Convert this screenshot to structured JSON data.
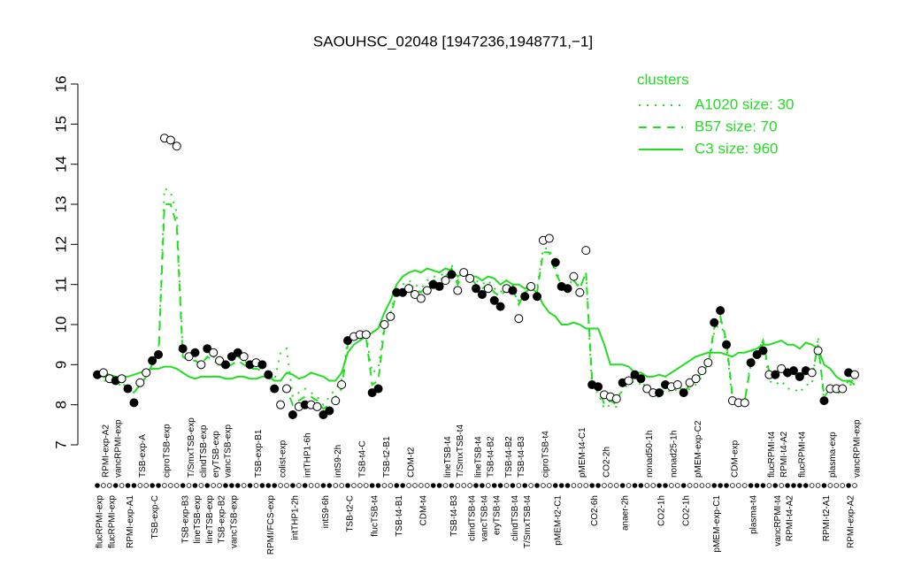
{
  "chart_data": {
    "type": "scatter",
    "title": "SAOUHSC_02048 [1947236,1948771,−1]",
    "categories": [
      "flucRPMI-exp",
      "RPMI-exp-A2",
      "flucRPMI-exp",
      "vancRPMI-exp",
      null,
      "RPMI-exp-A1",
      null,
      "TSB-exp-A",
      null,
      "TSB-exp-C",
      null,
      "ciproTSB-exp",
      null,
      null,
      "TSB-exp-B3",
      "T/SmxTSB-exp",
      "lineTSB-exp",
      "clindTSB-exp",
      "lineTSB-exp",
      "eryTSB-exp",
      "TSB-exp-B2",
      "vancTSB-exp",
      "vancTSB-exp",
      null,
      null,
      null,
      "TSB-exp-B1",
      null,
      "RPMI/FCS-exp",
      null,
      "colist-exp",
      null,
      "intTHP1-2h",
      null,
      "intTHP1-6h",
      null,
      null,
      "intS9-6h",
      null,
      "intS9-2h",
      null,
      "TSB-t2-C",
      null,
      "TSB-t4-C",
      null,
      "flucTSB-t4",
      null,
      "TSB-t2-B1",
      null,
      "TSB-t4-B1",
      null,
      "CDM-t2",
      null,
      "CDM-t4",
      null,
      null,
      null,
      "lineTSB-t4",
      "TSB-t4-B3",
      "T/SmxTSB-t4",
      null,
      "clindTSB-t4",
      "lineTSB-t4",
      "vancTSB-t4",
      "TSB-t4-B2",
      "eryTSB-t4",
      null,
      "TSB-t4-B2",
      "clindTSB-t4",
      "TSB-t4-B3",
      "T/SmxTSB-t4",
      null,
      null,
      "ciproTSB-t4",
      null,
      "pMEM-t2-C1",
      null,
      null,
      null,
      "pMEM-t4-C1",
      null,
      "CO2-6h",
      null,
      "CO2-2h",
      null,
      null,
      "anaer-2h",
      null,
      null,
      null,
      "nonad50-1h",
      null,
      "CO2-1h",
      null,
      "nonad25-1h",
      null,
      "CO2-1h",
      null,
      "pMEM-exp-C2",
      null,
      null,
      "pMEM-exp-C1",
      null,
      null,
      "CDM-exp",
      null,
      null,
      "plasma-t4",
      null,
      null,
      "flucRPMI-t4",
      "vancRPMI-t4",
      "RPMI-t4-A2",
      "RPMI-t4-A2",
      null,
      "flucRPMI-t4",
      null,
      null,
      null,
      "RPMI-t2-A1",
      "plasma-exp",
      null,
      null,
      "RPMI-exp-A2",
      "vancRPMI-exp"
    ],
    "points": {
      "values": [
        8.75,
        8.8,
        8.65,
        8.6,
        8.65,
        8.4,
        8.05,
        8.55,
        8.8,
        9.1,
        9.25,
        14.65,
        14.6,
        14.45,
        9.4,
        9.2,
        9.3,
        9.0,
        9.4,
        9.3,
        9.1,
        9.0,
        9.2,
        9.3,
        9.2,
        9.0,
        9.05,
        9.0,
        8.75,
        8.4,
        8.0,
        8.4,
        7.75,
        7.95,
        8.0,
        8.0,
        7.95,
        7.75,
        7.85,
        8.1,
        8.5,
        9.6,
        9.7,
        9.75,
        9.75,
        8.3,
        8.4,
        10.0,
        10.2,
        10.8,
        10.8,
        10.9,
        10.75,
        10.65,
        10.85,
        11.0,
        10.95,
        11.1,
        11.25,
        10.85,
        11.3,
        11.15,
        10.9,
        10.75,
        10.9,
        10.6,
        10.45,
        10.9,
        10.85,
        10.15,
        10.7,
        10.95,
        10.7,
        12.1,
        12.15,
        11.55,
        10.95,
        10.9,
        11.2,
        10.8,
        11.85,
        8.5,
        8.45,
        8.25,
        8.2,
        8.15,
        8.55,
        8.6,
        8.75,
        8.65,
        8.4,
        8.3,
        8.3,
        8.5,
        8.45,
        8.5,
        8.3,
        8.55,
        8.65,
        8.85,
        9.05,
        10.05,
        10.35,
        9.5,
        8.1,
        8.05,
        8.05,
        9.05,
        9.25,
        9.35,
        8.75,
        8.75,
        8.9,
        8.8,
        8.85,
        8.7,
        8.85,
        8.8,
        9.35,
        8.1,
        8.4,
        8.4,
        8.4,
        8.8,
        8.75
      ],
      "fills": [
        "#000000",
        "#ffffff",
        "#ffffff",
        "#000000",
        "#ffffff",
        "#000000",
        "#000000",
        "#ffffff",
        "#ffffff",
        "#000000",
        "#000000",
        "#ffffff",
        "#ffffff",
        "#ffffff",
        "#000000",
        "#ffffff",
        "#000000",
        "#ffffff",
        "#000000",
        "#ffffff",
        "#ffffff",
        "#000000",
        "#000000",
        "#000000",
        "#ffffff",
        "#000000",
        "#ffffff",
        "#000000",
        "#000000",
        "#000000",
        "#ffffff",
        "#ffffff",
        "#000000",
        "#ffffff",
        "#000000",
        "#ffffff",
        "#ffffff",
        "#000000",
        "#000000",
        "#ffffff",
        "#ffffff",
        "#000000",
        "#ffffff",
        "#ffffff",
        "#ffffff",
        "#000000",
        "#000000",
        "#ffffff",
        "#ffffff",
        "#000000",
        "#000000",
        "#ffffff",
        "#ffffff",
        "#ffffff",
        "#ffffff",
        "#000000",
        "#000000",
        "#ffffff",
        "#000000",
        "#ffffff",
        "#ffffff",
        "#ffffff",
        "#000000",
        "#000000",
        "#ffffff",
        "#000000",
        "#000000",
        "#ffffff",
        "#000000",
        "#ffffff",
        "#000000",
        "#ffffff",
        "#000000",
        "#ffffff",
        "#ffffff",
        "#000000",
        "#000000",
        "#000000",
        "#ffffff",
        "#ffffff",
        "#ffffff",
        "#000000",
        "#000000",
        "#ffffff",
        "#ffffff",
        "#ffffff",
        "#000000",
        "#ffffff",
        "#000000",
        "#000000",
        "#ffffff",
        "#ffffff",
        "#000000",
        "#000000",
        "#ffffff",
        "#ffffff",
        "#000000",
        "#ffffff",
        "#ffffff",
        "#ffffff",
        "#ffffff",
        "#000000",
        "#000000",
        "#000000",
        "#ffffff",
        "#ffffff",
        "#ffffff",
        "#000000",
        "#000000",
        "#000000",
        "#ffffff",
        "#000000",
        "#ffffff",
        "#000000",
        "#000000",
        "#000000",
        "#000000",
        "#ffffff",
        "#ffffff",
        "#000000",
        "#ffffff",
        "#ffffff",
        "#ffffff",
        "#000000",
        "#ffffff"
      ]
    },
    "legend_title": "clusters",
    "series": [
      {
        "name": "A1020 size: 30",
        "color": "#22dd22",
        "dash": "dotted",
        "values": [
          8.7,
          8.6,
          8.6,
          8.5,
          8.5,
          8.4,
          8.3,
          8.5,
          8.7,
          9.0,
          9.2,
          13.4,
          13.3,
          12.8,
          9.3,
          9.1,
          9.1,
          9.0,
          9.2,
          9.2,
          9.0,
          9.0,
          9.1,
          9.2,
          9.1,
          9.0,
          9.0,
          8.9,
          8.8,
          8.6,
          9.3,
          9.4,
          8.2,
          8.3,
          8.4,
          8.3,
          8.2,
          8.0,
          8.2,
          8.4,
          8.6,
          9.6,
          9.7,
          9.8,
          9.8,
          8.8,
          8.9,
          10.0,
          10.3,
          10.9,
          11.0,
          11.1,
          11.0,
          10.9,
          11.1,
          11.2,
          11.2,
          11.3,
          11.5,
          11.1,
          11.4,
          11.3,
          11.1,
          11.0,
          11.1,
          10.9,
          10.8,
          11.0,
          11.0,
          10.6,
          10.9,
          11.0,
          10.9,
          11.9,
          11.9,
          11.4,
          11.0,
          10.9,
          11.2,
          10.9,
          11.3,
          8.4,
          8.3,
          7.9,
          8.0,
          7.95,
          8.4,
          8.5,
          8.6,
          8.5,
          8.3,
          8.2,
          8.2,
          8.4,
          8.3,
          8.4,
          8.3,
          8.4,
          8.5,
          8.7,
          8.9,
          9.8,
          10.1,
          9.5,
          8.1,
          8.1,
          8.1,
          9.1,
          9.3,
          9.6,
          8.6,
          8.5,
          8.6,
          8.4,
          8.4,
          8.3,
          8.5,
          8.5,
          9.7,
          8.0,
          8.3,
          8.3,
          8.3,
          8.5,
          8.5
        ]
      },
      {
        "name": "B57 size: 70",
        "color": "#22dd22",
        "dash": "dashed",
        "values": [
          8.7,
          8.7,
          8.6,
          8.6,
          8.55,
          8.4,
          8.3,
          8.5,
          8.7,
          9.0,
          9.1,
          13.0,
          13.0,
          12.5,
          9.2,
          9.1,
          9.1,
          9.0,
          9.2,
          9.1,
          9.0,
          8.95,
          9.0,
          9.1,
          9.0,
          8.9,
          8.9,
          8.85,
          8.7,
          8.4,
          8.3,
          8.4,
          8.0,
          8.1,
          8.2,
          8.2,
          8.1,
          7.9,
          8.0,
          8.2,
          8.4,
          9.5,
          9.6,
          9.7,
          9.7,
          8.5,
          8.6,
          9.9,
          10.2,
          10.8,
          10.9,
          11.0,
          10.9,
          10.8,
          11.0,
          11.1,
          11.1,
          11.2,
          11.4,
          11.0,
          11.3,
          11.2,
          11.0,
          10.9,
          11.0,
          10.8,
          10.7,
          10.9,
          10.9,
          10.5,
          10.8,
          10.9,
          10.8,
          11.8,
          11.8,
          11.3,
          11.0,
          10.9,
          11.1,
          10.9,
          11.3,
          8.6,
          8.5,
          8.0,
          8.1,
          8.0,
          8.5,
          8.6,
          8.7,
          8.6,
          8.4,
          8.3,
          8.3,
          8.5,
          8.4,
          8.5,
          8.3,
          8.5,
          8.6,
          8.8,
          9.0,
          9.9,
          10.2,
          9.6,
          8.2,
          8.1,
          8.1,
          9.0,
          9.2,
          9.6,
          8.8,
          8.7,
          8.9,
          8.7,
          8.8,
          8.6,
          8.8,
          8.7,
          9.5,
          8.2,
          8.4,
          8.4,
          8.4,
          8.6,
          8.6
        ]
      },
      {
        "name": "C3 size: 960",
        "color": "#22dd22",
        "dash": "solid",
        "values": [
          8.8,
          8.8,
          8.75,
          8.7,
          8.7,
          8.7,
          8.75,
          8.8,
          8.85,
          8.9,
          8.9,
          8.95,
          8.95,
          8.9,
          8.8,
          8.7,
          8.65,
          8.7,
          8.7,
          8.7,
          8.7,
          8.65,
          8.65,
          8.7,
          8.7,
          8.65,
          8.65,
          8.7,
          8.7,
          8.6,
          8.6,
          8.8,
          8.75,
          8.65,
          8.7,
          8.8,
          8.75,
          8.7,
          8.6,
          8.6,
          8.8,
          9.3,
          9.5,
          9.6,
          9.7,
          9.8,
          9.9,
          10.3,
          10.6,
          11.0,
          11.2,
          11.3,
          11.35,
          11.3,
          11.4,
          11.35,
          11.3,
          11.4,
          11.35,
          11.2,
          11.3,
          11.2,
          11.2,
          11.1,
          11.2,
          11.15,
          11.0,
          11.1,
          11.0,
          11.0,
          10.9,
          10.9,
          10.8,
          10.5,
          10.3,
          10.2,
          10.0,
          10.0,
          10.05,
          10.0,
          9.9,
          9.9,
          9.9,
          9.5,
          9.0,
          9.0,
          9.0,
          8.95,
          8.8,
          8.8,
          8.7,
          8.7,
          8.75,
          8.7,
          8.8,
          8.9,
          9.0,
          9.1,
          9.2,
          9.25,
          9.3,
          9.3,
          9.3,
          9.25,
          9.2,
          9.3,
          9.3,
          9.35,
          9.4,
          9.5,
          9.5,
          9.55,
          9.6,
          9.5,
          9.5,
          9.4,
          9.55,
          9.5,
          9.4,
          9.0,
          8.9,
          8.7,
          8.6,
          8.6,
          8.5
        ]
      }
    ],
    "ylim": [
      7,
      16
    ],
    "yticks": [
      7,
      8,
      9,
      10,
      11,
      12,
      13,
      14,
      15,
      16
    ]
  }
}
